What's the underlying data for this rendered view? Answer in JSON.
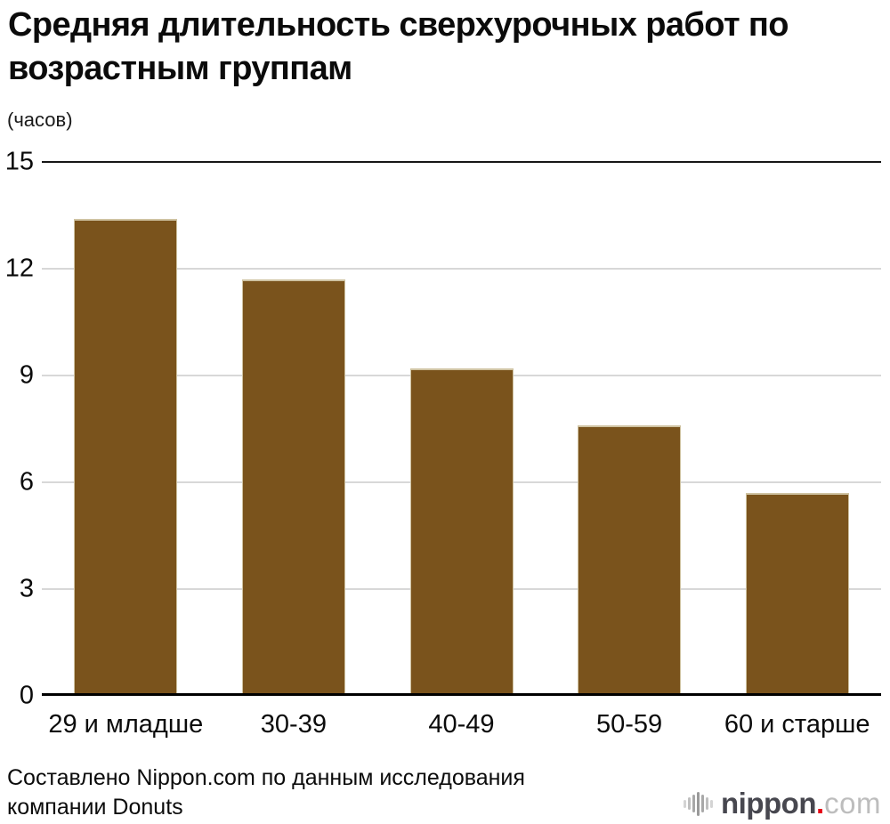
{
  "title": {
    "full": "Средняя длительность сверхурочных работ по возрастным группам",
    "line1": "Средняя длительность сверхурочных работ по",
    "line2": "возрастным группам"
  },
  "chart_data": {
    "type": "bar",
    "title": "Средняя длительность сверхурочных работ по возрастным группам",
    "unit_label": "(часов)",
    "categories": [
      "29 и младше",
      "30-39",
      "40-49",
      "50-59",
      "60 и старше"
    ],
    "values": [
      13.4,
      11.7,
      9.2,
      7.6,
      5.7
    ],
    "ylabel": "(часов)",
    "xlabel": "",
    "ylim": [
      0,
      15
    ],
    "yticks": [
      15,
      12,
      9,
      6,
      3,
      0
    ],
    "grid": "horizontal",
    "legend": "none",
    "bar_color": "#7a531c",
    "bar_edge_color": "#cfc3a2",
    "gridline_color": "#d8d8d8",
    "axis_color": "#000000"
  },
  "footer": {
    "line1": "Составлено Nippon.com по данным исследования",
    "line2": "компании Donuts"
  },
  "logo": {
    "icon": "soundwave-icon",
    "brand": "nippon",
    "dot": ".",
    "tld": "com",
    "accent_color": "#e60012"
  }
}
